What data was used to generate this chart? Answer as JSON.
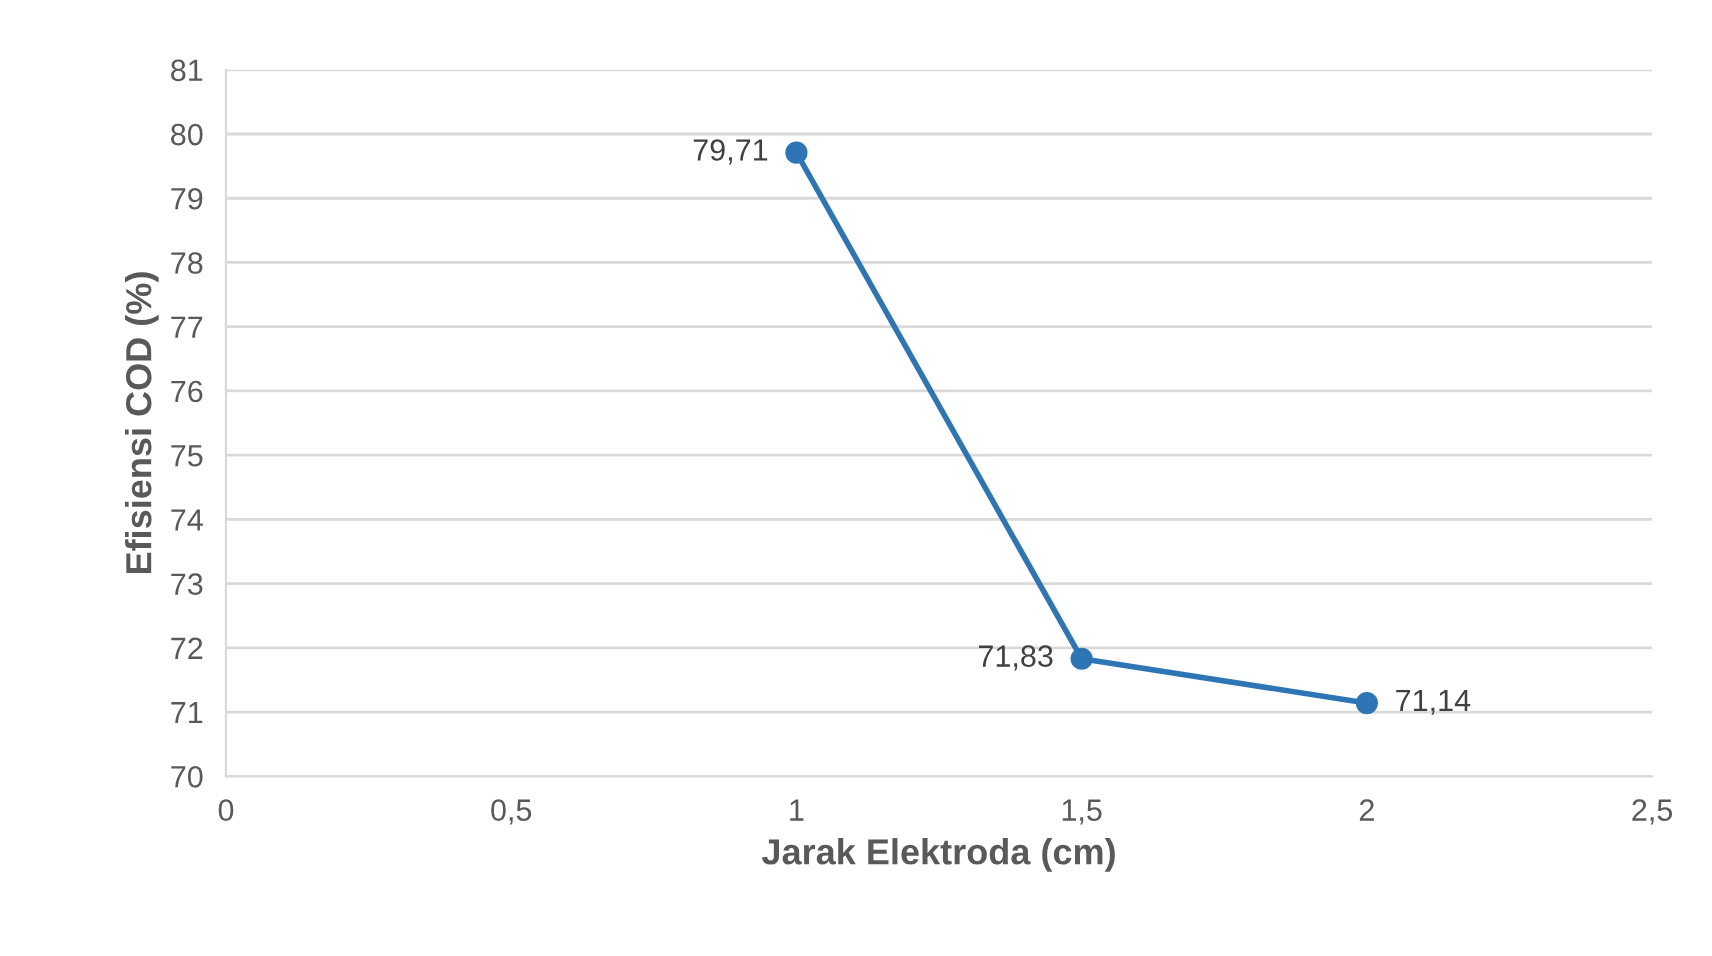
{
  "chart_data": {
    "type": "line",
    "xlabel": "Jarak Elektroda (cm)",
    "ylabel": "Efisiensi COD (%)",
    "x": [
      1,
      1.5,
      2
    ],
    "series": [
      {
        "color": "#2e75b6",
        "values": [
          79.71,
          71.83,
          71.14
        ],
        "value_labels": [
          "79,71",
          "71,83",
          "71,14"
        ]
      }
    ],
    "xlim": [
      0,
      2.5
    ],
    "xticks": [
      0,
      {
        "value": 0.5,
        "label": "0,5"
      },
      1,
      {
        "value": 1.5,
        "label": "1,5"
      },
      2,
      {
        "value": 2.5,
        "label": "2,5"
      }
    ],
    "ylim": [
      70,
      81
    ],
    "yticks": [
      70,
      71,
      72,
      73,
      74,
      75,
      76,
      77,
      78,
      79,
      80,
      81
    ],
    "grid": "y",
    "marker": "circle",
    "line_style": "solid",
    "legend": false
  }
}
